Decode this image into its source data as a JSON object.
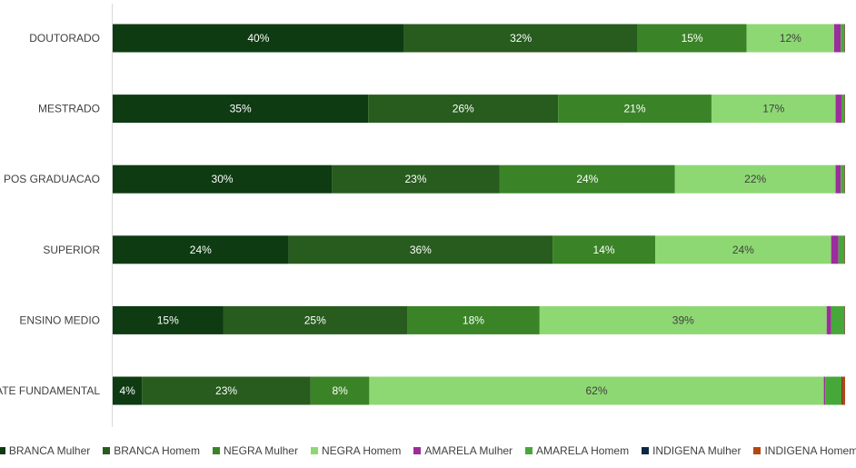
{
  "chart_data": {
    "type": "bar",
    "orientation": "horizontal",
    "stacked": "percent",
    "categories": [
      "DOUTORADO",
      "MESTRADO",
      "POS GRADUACAO",
      "SUPERIOR",
      "ENSINO MEDIO",
      "ATE FUNDAMENTAL"
    ],
    "series": [
      {
        "name": "BRANCA Mulher",
        "color": "#0e3b12",
        "values": [
          40,
          35,
          30,
          24,
          15,
          4
        ]
      },
      {
        "name": "BRANCA Homem",
        "color": "#275c1e",
        "values": [
          32,
          26,
          23,
          36,
          25,
          23
        ]
      },
      {
        "name": "NEGRA Mulher",
        "color": "#3a8427",
        "values": [
          15,
          21,
          24,
          14,
          18,
          8
        ]
      },
      {
        "name": "NEGRA Homem",
        "color": "#8ed873",
        "values": [
          12,
          17,
          22,
          24,
          39,
          62
        ]
      },
      {
        "name": "AMARELA Mulher",
        "color": "#9c2d9c",
        "values": [
          0.9,
          0.8,
          0.7,
          1.0,
          0.6,
          0.2
        ]
      },
      {
        "name": "AMARELA Homem",
        "color": "#47a83a",
        "values": [
          0.5,
          0.4,
          0.5,
          0.8,
          1.8,
          2.2
        ]
      },
      {
        "name": "INDIGENA Mulher",
        "color": "#0e2841",
        "values": [
          0.05,
          0.05,
          0.05,
          0.05,
          0.05,
          0.1
        ]
      },
      {
        "name": "INDIGENA Homem",
        "color": "#b5470f",
        "values": [
          0.05,
          0.05,
          0.05,
          0.05,
          0.05,
          0.4
        ]
      }
    ],
    "data_labels": [
      [
        "40%",
        "32%",
        "15%",
        "12%",
        "",
        "",
        "",
        ""
      ],
      [
        "35%",
        "26%",
        "21%",
        "17%",
        "",
        "",
        "",
        ""
      ],
      [
        "30%",
        "23%",
        "24%",
        "22%",
        "",
        "",
        "",
        ""
      ],
      [
        "24%",
        "36%",
        "14%",
        "24%",
        "",
        "",
        "",
        ""
      ],
      [
        "15%",
        "25%",
        "18%",
        "39%",
        "",
        "",
        "",
        ""
      ],
      [
        "4%",
        "23%",
        "8%",
        "62%",
        "",
        "",
        "",
        ""
      ]
    ],
    "label_colors": [
      "#ffffff",
      "#ffffff",
      "#ffffff",
      "#404040",
      "#ffffff",
      "#ffffff",
      "#ffffff",
      "#ffffff"
    ],
    "xlim": [
      0,
      100
    ],
    "grid": false,
    "legend_position": "bottom"
  }
}
